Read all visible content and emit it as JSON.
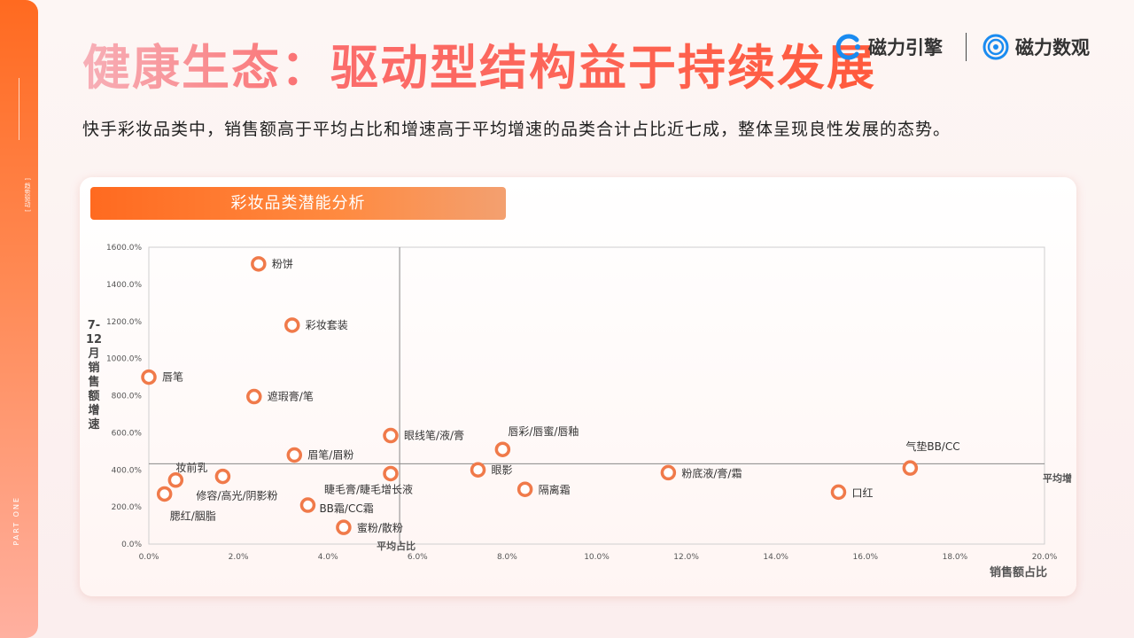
{
  "page": {
    "title": "健康生态：驱动型结构益于持续发展",
    "subtitle": "快手彩妆品类中，销售额高于平均占比和增速高于平均增速的品类合计占比近七成，整体呈现良性发展的态势。",
    "side_tag": "[ 趋势驱动 ]",
    "side_part": "PART ONE"
  },
  "brands": {
    "brand1": "磁力引擎",
    "brand2": "磁力数观"
  },
  "card": {
    "header": "彩妆品类潜能分析"
  },
  "chart_data": {
    "type": "scatter",
    "title": "彩妆品类潜能分析",
    "xlabel": "销售额占比",
    "ylabel": "7-12月销售额增速",
    "xlim": [
      0,
      20
    ],
    "ylim": [
      0,
      1600
    ],
    "xticks": [
      "0.0%",
      "2.0%",
      "4.0%",
      "6.0%",
      "8.0%",
      "10.0%",
      "12.0%",
      "14.0%",
      "16.0%",
      "18.0%",
      "20.0%"
    ],
    "yticks": [
      "0.0%",
      "200.0%",
      "400.0%",
      "600.0%",
      "800.0%",
      "1000.0%",
      "1200.0%",
      "1400.0%",
      "1600.0%"
    ],
    "avg_x": 5.6,
    "avg_y": 433,
    "avg_x_label": "平均占比",
    "avg_y_label": "平均增速",
    "marker_color": "#f07a4a",
    "points": [
      {
        "name": "粉饼",
        "x": 2.45,
        "y": 1510
      },
      {
        "name": "彩妆套装",
        "x": 3.2,
        "y": 1180
      },
      {
        "name": "唇笔",
        "x": 0.0,
        "y": 900
      },
      {
        "name": "遮瑕膏/笔",
        "x": 2.35,
        "y": 795
      },
      {
        "name": "眼线笔/液/膏",
        "x": 5.4,
        "y": 585
      },
      {
        "name": "唇彩/唇蜜/唇釉",
        "x": 7.9,
        "y": 510
      },
      {
        "name": "眉笔/眉粉",
        "x": 3.25,
        "y": 480
      },
      {
        "name": "气垫BB/CC",
        "x": 17.0,
        "y": 410
      },
      {
        "name": "眼影",
        "x": 7.35,
        "y": 400
      },
      {
        "name": "粉底液/膏/霜",
        "x": 11.6,
        "y": 385
      },
      {
        "name": "睫毛膏/睫毛增长液",
        "x": 5.4,
        "y": 380
      },
      {
        "name": "修容/高光/阴影粉",
        "x": 1.65,
        "y": 365
      },
      {
        "name": "妆前乳",
        "x": 0.6,
        "y": 345
      },
      {
        "name": "隔离霜",
        "x": 8.4,
        "y": 295
      },
      {
        "name": "口红",
        "x": 15.4,
        "y": 280
      },
      {
        "name": "腮红/胭脂",
        "x": 0.35,
        "y": 270
      },
      {
        "name": "BB霜/CC霜",
        "x": 3.55,
        "y": 210
      },
      {
        "name": "蜜粉/散粉",
        "x": 4.35,
        "y": 90
      }
    ]
  }
}
